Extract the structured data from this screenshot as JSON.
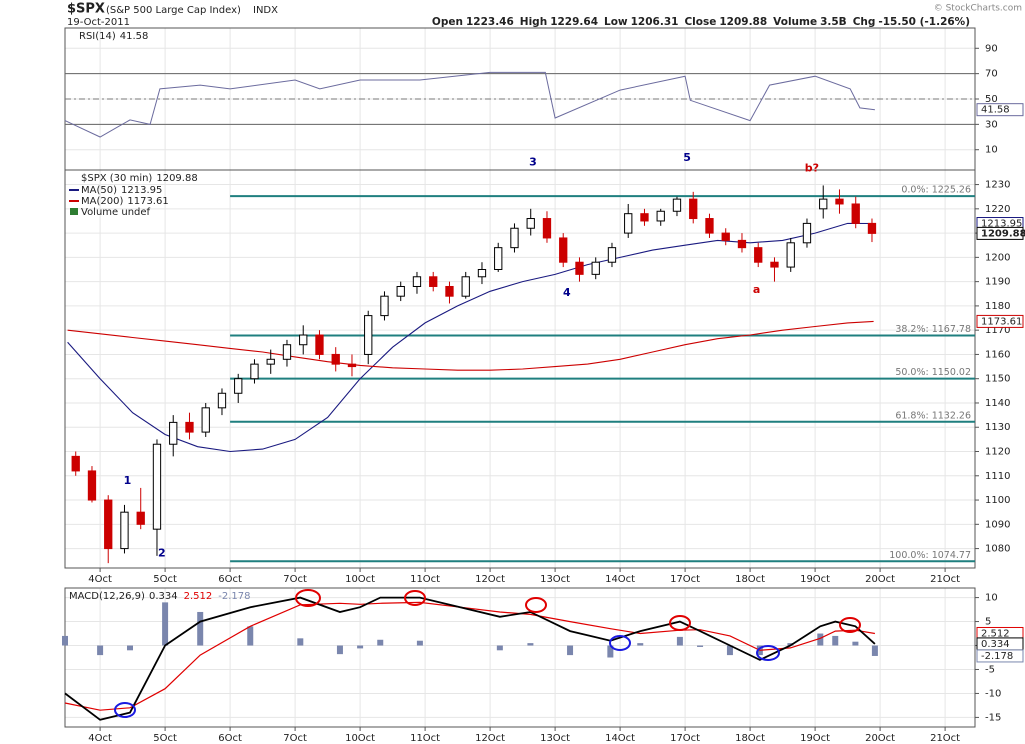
{
  "header": {
    "symbol": "$SPX",
    "name": "(S&P 500 Large Cap Index)",
    "exchange": "INDX",
    "date": "19-Oct-2011",
    "credit": "© StockCharts.com",
    "quote": [
      {
        "label": "Open",
        "value": 1223.46
      },
      {
        "label": "High",
        "value": 1229.64
      },
      {
        "label": "Low",
        "value": 1206.31
      },
      {
        "label": "Close",
        "value": 1209.88
      },
      {
        "label": "Volume",
        "value": "3.5B"
      },
      {
        "label": "Chg",
        "value": "-15.50 (-1.26%)"
      }
    ]
  },
  "chart_data": [
    {
      "type": "line",
      "xlim": [
        -0.54,
        13.46
      ],
      "ylim": [
        -6,
        106
      ],
      "yticks": [
        90,
        70,
        50,
        30,
        10
      ],
      "reference_lines": [
        70,
        30
      ],
      "midline": 50,
      "grid": true,
      "series": [
        {
          "name": "RSI(14)",
          "color": "#6b6b9e",
          "x": [
            -0.54,
            0,
            0.46,
            0.77,
            0.92,
            1.54,
            2,
            3,
            3.38,
            4,
            4.92,
            6,
            6.85,
            7,
            8,
            9,
            9.08,
            10,
            10.3,
            11,
            11.54,
            11.69,
            11.92
          ],
          "values": [
            33,
            20,
            33.5,
            30,
            58,
            61,
            58,
            65,
            58,
            65,
            65,
            71,
            71,
            35,
            57,
            68,
            49,
            33,
            61,
            68,
            58,
            43,
            41.58
          ]
        }
      ]
    },
    {
      "type": "candlestick",
      "title": "$SPX (30 min)",
      "volume_label": "Volume undef",
      "xlim": [
        -0.54,
        13.46
      ],
      "ylim": [
        1072,
        1236
      ],
      "yticks": [
        1230,
        1220,
        1210,
        1200,
        1190,
        1180,
        1170,
        1160,
        1150,
        1140,
        1130,
        1120,
        1110,
        1100,
        1090,
        1080
      ],
      "grid": true,
      "xticks": [
        {
          "value": 0,
          "label": "4Oct"
        },
        {
          "value": 1,
          "label": "5Oct"
        },
        {
          "value": 2,
          "label": "6Oct"
        },
        {
          "value": 3,
          "label": "7Oct"
        },
        {
          "value": 4,
          "label": "10Oct"
        },
        {
          "value": 5,
          "label": "11Oct"
        },
        {
          "value": 6,
          "label": "12Oct"
        },
        {
          "value": 7,
          "label": "13Oct"
        },
        {
          "value": 8,
          "label": "14Oct"
        },
        {
          "value": 9,
          "label": "17Oct"
        },
        {
          "value": 10,
          "label": "18Oct"
        },
        {
          "value": 11,
          "label": "19Oct"
        },
        {
          "value": 12,
          "label": "20Oct"
        },
        {
          "value": 13,
          "label": "21Oct"
        }
      ],
      "up_color": "#000000",
      "down_color": "#cc0000",
      "x": [
        -0.375,
        -0.125,
        0.125,
        0.375,
        0.625,
        0.875,
        1.125,
        1.375,
        1.625,
        1.875,
        2.125,
        2.375,
        2.625,
        2.875,
        3.125,
        3.375,
        3.625,
        3.875,
        4.125,
        4.375,
        4.625,
        4.875,
        5.125,
        5.375,
        5.625,
        5.875,
        6.125,
        6.375,
        6.625,
        6.875,
        7.125,
        7.375,
        7.625,
        7.875,
        8.125,
        8.375,
        8.625,
        8.875,
        9.125,
        9.375,
        9.625,
        9.875,
        10.125,
        10.375,
        10.625,
        10.875,
        11.125,
        11.375,
        11.625,
        11.875
      ],
      "open": [
        1118,
        1112,
        1100,
        1080,
        1095,
        1088,
        1123,
        1132,
        1128,
        1138,
        1144,
        1150,
        1156,
        1158,
        1164,
        1168,
        1160,
        1156,
        1160,
        1176,
        1184,
        1188,
        1192,
        1188,
        1184,
        1192,
        1195,
        1204,
        1212,
        1216,
        1208,
        1198,
        1193,
        1198,
        1210,
        1218,
        1215,
        1219,
        1224,
        1216,
        1210,
        1207,
        1204,
        1198,
        1196,
        1206,
        1220,
        1224,
        1222,
        1214
      ],
      "high": [
        1120,
        1114,
        1102,
        1098,
        1105,
        1125,
        1135,
        1136,
        1140,
        1146,
        1152,
        1158,
        1162,
        1166,
        1172,
        1170,
        1163,
        1160,
        1178,
        1186,
        1190,
        1194,
        1194,
        1190,
        1194,
        1198,
        1206,
        1214,
        1220,
        1219,
        1210,
        1200,
        1200,
        1206,
        1222,
        1220,
        1220,
        1225,
        1227,
        1218,
        1212,
        1210,
        1206,
        1200,
        1208,
        1216,
        1229.64,
        1228,
        1225,
        1216
      ],
      "low": [
        1110,
        1099,
        1074,
        1078,
        1088,
        1077,
        1118,
        1125,
        1126,
        1135,
        1140,
        1148,
        1152,
        1155,
        1160,
        1158,
        1153,
        1151,
        1156,
        1174,
        1182,
        1185,
        1186,
        1181,
        1183,
        1189,
        1194,
        1202,
        1209,
        1206,
        1196,
        1190,
        1191,
        1196,
        1208,
        1213,
        1213,
        1217,
        1214,
        1208,
        1205,
        1202,
        1196,
        1190,
        1194,
        1204,
        1216,
        1218,
        1212,
        1206.31
      ],
      "close": [
        1112,
        1100,
        1080,
        1095,
        1090,
        1123,
        1132,
        1128,
        1138,
        1144,
        1150,
        1156,
        1158,
        1164,
        1168,
        1160,
        1156,
        1155,
        1176,
        1184,
        1188,
        1192,
        1188,
        1184,
        1192,
        1195,
        1204,
        1212,
        1216,
        1208,
        1198,
        1193,
        1198,
        1204,
        1218,
        1215,
        1219,
        1224,
        1216,
        1210,
        1207,
        1204,
        1198,
        1196,
        1206,
        1214,
        1224,
        1222,
        1214,
        1209.88
      ],
      "overlays": [
        {
          "name": "MA(50)",
          "color": "#1a1a80",
          "x": [
            -0.5,
            0,
            0.5,
            1,
            1.5,
            2,
            2.5,
            3,
            3.5,
            4,
            4.5,
            5,
            5.5,
            6,
            6.5,
            7,
            7.5,
            8,
            8.5,
            9,
            9.5,
            10,
            10.5,
            11,
            11.5,
            11.9
          ],
          "values": [
            1165,
            1150,
            1136,
            1127,
            1122,
            1120,
            1121,
            1125,
            1134,
            1150,
            1163,
            1173,
            1180,
            1186,
            1190,
            1193,
            1197,
            1200,
            1203,
            1205,
            1207,
            1206,
            1207,
            1210,
            1214,
            1213.95
          ]
        },
        {
          "name": "MA(200)",
          "color": "#cc0000",
          "x": [
            -0.5,
            0,
            0.5,
            1,
            1.5,
            2,
            2.5,
            3,
            3.5,
            4,
            4.5,
            5,
            5.5,
            6,
            6.5,
            7,
            7.5,
            8,
            8.5,
            9,
            9.5,
            10,
            10.5,
            11,
            11.5,
            11.9
          ],
          "values": [
            1170,
            1168.5,
            1167,
            1165.5,
            1164,
            1162.5,
            1161,
            1159,
            1157,
            1155.5,
            1154.5,
            1154,
            1153.5,
            1153.5,
            1154,
            1155,
            1156,
            1158,
            1161,
            1164,
            1166.5,
            1168,
            1170,
            1171.5,
            1173,
            1173.61
          ]
        }
      ],
      "levels_start": 2,
      "level_color": "#1f7f7f",
      "levels": [
        {
          "value": 1225.26,
          "label": "0.0%: 1225.26"
        },
        {
          "value": 1167.78,
          "label": "38.2%: 1167.78"
        },
        {
          "value": 1150.02,
          "label": "50.0%: 1150.02"
        },
        {
          "value": 1132.26,
          "label": "61.8%: 1132.26"
        },
        {
          "value": 1074.77,
          "label": "100.0%: 1074.77"
        }
      ],
      "annotations": [
        {
          "text": "1",
          "x": 0.42,
          "y": 1107.9,
          "color": "#00008b"
        },
        {
          "text": "2",
          "x": 0.95,
          "y": 1078,
          "color": "#00008b"
        },
        {
          "text": "3",
          "x": 6.66,
          "y": 1239,
          "color": "#00008b"
        },
        {
          "text": "4",
          "x": 7.18,
          "y": 1185.3,
          "color": "#00008b"
        },
        {
          "text": "5",
          "x": 9.03,
          "y": 1241,
          "color": "#00008b"
        },
        {
          "text": "a",
          "x": 10.1,
          "y": 1186.6,
          "color": "#cc0000"
        },
        {
          "text": "b?",
          "x": 10.95,
          "y": 1236.6,
          "color": "#cc0000"
        }
      ]
    },
    {
      "type": "macd",
      "title": "MACD(12,26,9)",
      "xlim": [
        -0.54,
        13.46
      ],
      "ylim": [
        -17,
        12
      ],
      "yticks": [
        10,
        5,
        0,
        -5,
        -10,
        -15
      ],
      "grid": true,
      "xticks": [
        {
          "value": 0,
          "label": "4Oct"
        },
        {
          "value": 1,
          "label": "5Oct"
        },
        {
          "value": 2,
          "label": "6Oct"
        },
        {
          "value": 3,
          "label": "7Oct"
        },
        {
          "value": 4,
          "label": "10Oct"
        },
        {
          "value": 5,
          "label": "11Oct"
        },
        {
          "value": 6,
          "label": "12Oct"
        },
        {
          "value": 7,
          "label": "13Oct"
        },
        {
          "value": 8,
          "label": "14Oct"
        },
        {
          "value": 9,
          "label": "17Oct"
        },
        {
          "value": 10,
          "label": "18Oct"
        },
        {
          "value": 11,
          "label": "19Oct"
        },
        {
          "value": 12,
          "label": "20Oct"
        },
        {
          "value": 13,
          "label": "21Oct"
        }
      ],
      "x": [
        -0.54,
        0,
        0.46,
        1,
        1.54,
        2.31,
        3.08,
        3.69,
        4,
        4.31,
        4.92,
        5.54,
        6.15,
        6.62,
        7.23,
        7.85,
        8.31,
        8.92,
        9.23,
        9.69,
        10.15,
        10.62,
        11.08,
        11.31,
        11.62,
        11.92
      ],
      "macd": [
        -10,
        -15.5,
        -14,
        0,
        5,
        8,
        10,
        7,
        8,
        10,
        10,
        8,
        6,
        7,
        3,
        1,
        3,
        5,
        3,
        0,
        -3,
        0,
        4,
        5,
        4,
        0.334
      ],
      "signal": [
        -12,
        -13.5,
        -13,
        -9,
        -2,
        4,
        8.5,
        8.8,
        8.6,
        8.8,
        9,
        8,
        7,
        6.5,
        5,
        3.5,
        2.5,
        3.2,
        3.3,
        2,
        -1,
        -0.5,
        1.5,
        3,
        3.2,
        2.512
      ],
      "histogram": [
        2,
        -2,
        -1,
        9,
        7,
        4,
        1.5,
        -1.8,
        -0.6,
        1.2,
        1,
        0,
        -1,
        0.5,
        -2,
        -2.5,
        0.5,
        1.8,
        -0.3,
        -2,
        -2,
        0.5,
        2.5,
        2,
        0.8,
        -2.178
      ],
      "macd_color": "#000000",
      "signal_color": "#e00000",
      "histogram_color": "#7a86ad"
    }
  ]
}
